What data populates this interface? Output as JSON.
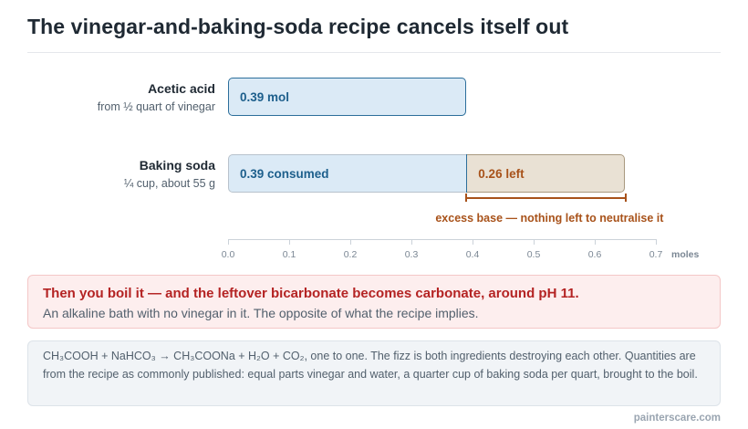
{
  "title": "The vinegar-and-baking-soda recipe cancels itself out",
  "chart_data": {
    "type": "bar",
    "orientation": "horizontal",
    "stacked": true,
    "xlim": [
      0,
      0.7
    ],
    "x_ticks": [
      "0.0",
      "0.1",
      "0.2",
      "0.3",
      "0.4",
      "0.5",
      "0.6",
      "0.7"
    ],
    "x_unit": "moles",
    "rows": [
      {
        "name": "Acetic acid",
        "sub": "from ½ quart of vinegar",
        "segments": [
          {
            "label": "0.39 mol",
            "value": 0.39,
            "kind": "acid"
          }
        ]
      },
      {
        "name": "Baking soda",
        "sub": "¼ cup, about 55 g",
        "segments": [
          {
            "label": "0.39 consumed",
            "value": 0.39,
            "kind": "consumed"
          },
          {
            "label": "0.26 left",
            "value": 0.26,
            "kind": "left"
          }
        ]
      }
    ],
    "annotation": {
      "text": "excess base — nothing left to neutralise it",
      "from": 0.39,
      "to": 0.65
    },
    "colors": {
      "acid_fill": "#dbeaf6",
      "acid_edge": "#2c6e9b",
      "left_fill": "#e9e1d4",
      "left_text": "#a8521a"
    }
  },
  "callout": {
    "headline": "Then you boil it — and the leftover bicarbonate becomes carbonate, around pH 11.",
    "body": "An alkaline bath with no vinegar in it. The opposite of what the recipe implies."
  },
  "note": "CH₃COOH + NaHCO₃ → CH₃COONa + H₂O + CO₂, one to one. The fizz is both ingredients destroying each other. Quantities are from the recipe as commonly published: equal parts vinegar and water, a quarter cup of baking soda per quart, brought to the boil.",
  "credit": "painterscare.com"
}
